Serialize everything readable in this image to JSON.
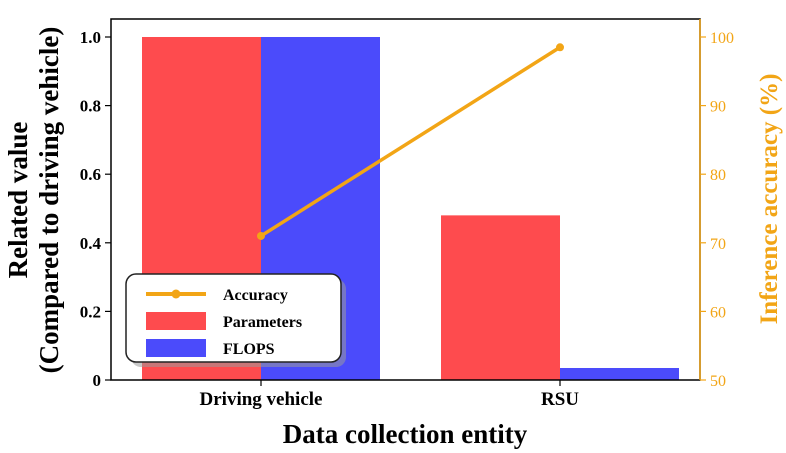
{
  "chart_data": {
    "type": "bar",
    "categories": [
      "Driving vehicle",
      "RSU"
    ],
    "series": [
      {
        "name": "Parameters",
        "values": [
          1.0,
          0.48
        ],
        "color": "#fe4b4e"
      },
      {
        "name": "FLOPS",
        "values": [
          1.0,
          0.035
        ],
        "color": "#4b4bfb"
      }
    ],
    "line_series": {
      "name": "Accuracy",
      "axis": "right",
      "values": [
        71.0,
        98.5
      ],
      "color": "#f2a516"
    },
    "xlabel": "Data collection entity",
    "ylabel": [
      "Related value",
      "(Compared to driving vehicle)"
    ],
    "y2label": "Inference accuracy (%)",
    "ylim": [
      0,
      1.0
    ],
    "y2lim": [
      50,
      100
    ],
    "yticks": [
      "0",
      "0.2",
      "0.4",
      "0.6",
      "0.8",
      "1.0"
    ],
    "y2ticks": [
      "50",
      "60",
      "70",
      "80",
      "90",
      "100"
    ],
    "legend": {
      "entries": [
        "Accuracy",
        "Parameters",
        "FLOPS"
      ],
      "position": "lower-left"
    },
    "grid": false
  }
}
